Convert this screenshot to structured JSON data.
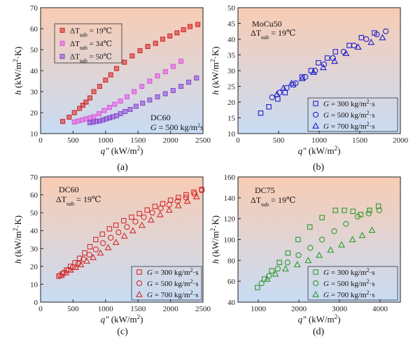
{
  "chart_data": [
    {
      "type": "scatter",
      "panel_label": "(a)",
      "xlabel": "q″ (kW/m²)",
      "ylabel": "h (kW/m²·K)",
      "xlim": [
        0,
        2500
      ],
      "ylim": [
        10,
        70
      ],
      "xticks": [
        0,
        500,
        1000,
        1500,
        2000,
        2500
      ],
      "yticks": [
        10,
        20,
        30,
        40,
        50,
        60,
        70
      ],
      "x_tick_labels": [
        "0",
        "500",
        "1000",
        "1500",
        "2000",
        "2500"
      ],
      "y_tick_labels": [
        "10",
        "20",
        "30",
        "40",
        "50",
        "60",
        "70"
      ],
      "annotations": [
        "DC60",
        "G = 500 kg/m²s"
      ],
      "legend_position": "top-left",
      "series": [
        {
          "name": "ΔTsub = 19℃",
          "label_main": "ΔT",
          "label_sub": "sub",
          "label_tail": " = 19℃",
          "marker": "square",
          "color": "#d42a2a",
          "x": [
            340,
            440,
            520,
            600,
            650,
            700,
            760,
            820,
            910,
            1000,
            1080,
            1170,
            1290,
            1410,
            1530,
            1650,
            1770,
            1880,
            1990,
            2100,
            2200,
            2300,
            2420
          ],
          "y": [
            15.8,
            17.8,
            20,
            22,
            23.5,
            25,
            27,
            30,
            32.5,
            35.5,
            38,
            41,
            44,
            47,
            49.5,
            51.5,
            53,
            55,
            56.5,
            58,
            59.5,
            61,
            62
          ]
        },
        {
          "name": "ΔTsub = 34℃",
          "label_main": "ΔT",
          "label_sub": "sub",
          "label_tail": " = 34℃",
          "marker": "square",
          "color": "#e055e0",
          "x": [
            520,
            580,
            640,
            700,
            760,
            820,
            900,
            980,
            1060,
            1140,
            1230,
            1330,
            1440,
            1560,
            1680,
            1800,
            1920,
            2040,
            2160
          ],
          "y": [
            15.5,
            16,
            16.5,
            17,
            17.5,
            18,
            19.5,
            21,
            22.5,
            24,
            25.5,
            27.5,
            30,
            32.5,
            35,
            37.5,
            39.5,
            42,
            44.5
          ]
        },
        {
          "name": "ΔTsub = 50℃",
          "label_main": "ΔT",
          "label_sub": "sub",
          "label_tail": " = 50℃",
          "marker": "square",
          "color": "#8a4ccf",
          "x": [
            760,
            810,
            860,
            910,
            960,
            1010,
            1060,
            1110,
            1170,
            1230,
            1300,
            1380,
            1470,
            1570,
            1680,
            1800,
            1920,
            2040,
            2160,
            2280,
            2400
          ],
          "y": [
            15.2,
            15.5,
            15.8,
            16,
            16.5,
            17,
            17.5,
            18,
            18.5,
            19.5,
            20.5,
            21.5,
            23,
            24.5,
            26,
            27.5,
            29,
            30.5,
            32.5,
            34.5,
            36.5
          ]
        }
      ]
    },
    {
      "type": "scatter",
      "panel_label": "(b)",
      "xlabel": "q″ (kW/m²)",
      "ylabel": "h (kW/m²·K)",
      "xlim": [
        0,
        2000
      ],
      "ylim": [
        10,
        50
      ],
      "xticks": [
        0,
        500,
        1000,
        1500,
        2000
      ],
      "yticks": [
        10,
        15,
        20,
        25,
        30,
        35,
        40,
        45,
        50
      ],
      "x_tick_labels": [
        "0",
        "500",
        "1000",
        "1500",
        "2000"
      ],
      "y_tick_labels": [
        "10",
        "15",
        "20",
        "25",
        "30",
        "35",
        "40",
        "45",
        "50"
      ],
      "annotations": [
        "MoCu50",
        "ΔTsub = 19℃"
      ],
      "legend_position": "bottom-right",
      "series": [
        {
          "name": "G = 300 kg/m²·s",
          "marker": "square",
          "color": "#2020cc",
          "x": [
            280,
            380,
            490,
            580,
            680,
            790,
            900,
            990,
            1100,
            1200,
            1370,
            1520,
            1680
          ],
          "y": [
            16.5,
            18.5,
            21,
            23,
            25.5,
            28,
            30,
            32.5,
            34,
            36,
            38,
            40.5,
            42
          ]
        },
        {
          "name": "G = 500 kg/m²·s",
          "marker": "circle",
          "color": "#2020cc",
          "x": [
            420,
            510,
            600,
            710,
            830,
            950,
            1060,
            1170,
            1300,
            1430,
            1580,
            1710,
            1820
          ],
          "y": [
            21.5,
            23,
            24.5,
            26,
            28,
            30,
            32,
            34,
            36,
            38,
            40,
            41.5,
            42.5
          ]
        },
        {
          "name": "G = 700 kg/m²·s",
          "marker": "triangle",
          "color": "#2020cc",
          "x": [
            480,
            560,
            660,
            790,
            930,
            1050,
            1190,
            1330,
            1480,
            1640,
            1780
          ],
          "y": [
            22.5,
            24.5,
            26,
            27.5,
            29.5,
            31,
            33,
            35.5,
            37.5,
            39,
            40.5
          ]
        }
      ]
    },
    {
      "type": "scatter",
      "panel_label": "(c)",
      "xlabel": "q″ (kW/m²)",
      "ylabel": "h (kW/m²·K)",
      "xlim": [
        0,
        2500
      ],
      "ylim": [
        0,
        70
      ],
      "xticks": [
        0,
        500,
        1000,
        1500,
        2000,
        2500
      ],
      "yticks": [
        0,
        10,
        20,
        30,
        40,
        50,
        60,
        70
      ],
      "x_tick_labels": [
        "0",
        "500",
        "1000",
        "1500",
        "2000",
        "2500"
      ],
      "y_tick_labels": [
        "0",
        "10",
        "20",
        "30",
        "40",
        "50",
        "60",
        "70"
      ],
      "annotations": [
        "DC60",
        "ΔTsub = 19℃"
      ],
      "legend_position": "bottom-right",
      "series": [
        {
          "name": "G = 300 kg/m²·s",
          "marker": "square",
          "color": "#d42a2a",
          "x": [
            280,
            340,
            400,
            460,
            530,
            600,
            680,
            760,
            850,
            950,
            1060,
            1160,
            1280,
            1400,
            1520,
            1640,
            1760,
            1880,
            2000,
            2120,
            2240,
            2360,
            2480
          ],
          "y": [
            14.5,
            16,
            18,
            20,
            22,
            24.5,
            27.5,
            31,
            35,
            38,
            41,
            43,
            45.5,
            47.5,
            49.5,
            51.5,
            53.5,
            55,
            57,
            58.5,
            60,
            61.5,
            63
          ]
        },
        {
          "name": "G = 500 kg/m²·s",
          "marker": "circle",
          "color": "#d42a2a",
          "x": [
            300,
            360,
            430,
            500,
            580,
            660,
            750,
            850,
            960,
            1080,
            1200,
            1330,
            1460,
            1590,
            1720,
            1850,
            1980,
            2110,
            2240,
            2370,
            2480
          ],
          "y": [
            15,
            16.5,
            18,
            19.5,
            21.5,
            24,
            26.5,
            29.5,
            33,
            36,
            39,
            42,
            45,
            47.5,
            50,
            52.5,
            54.5,
            56.5,
            58.5,
            60.5,
            62.5
          ]
        },
        {
          "name": "G = 700 kg/m²·s",
          "marker": "triangle",
          "color": "#d42a2a",
          "x": [
            320,
            390,
            460,
            540,
            620,
            710,
            810,
            920,
            1040,
            1160,
            1290,
            1420,
            1560,
            1700,
            1840,
            1980,
            2120,
            2260,
            2400
          ],
          "y": [
            15,
            16.5,
            18,
            19.5,
            21,
            23,
            25,
            27.5,
            30.5,
            33.5,
            37,
            40,
            43,
            46,
            49,
            51.5,
            54,
            56.5,
            59
          ]
        }
      ]
    },
    {
      "type": "scatter",
      "panel_label": "(d)",
      "xlabel": "q″ (kW/m²)",
      "ylabel": "h (kW/m²·K)",
      "xlim": [
        500,
        4500
      ],
      "ylim": [
        40,
        160
      ],
      "xticks": [
        1000,
        2000,
        3000,
        4000
      ],
      "yticks": [
        40,
        60,
        80,
        100,
        120,
        140,
        160
      ],
      "x_tick_labels": [
        "1000",
        "2000",
        "3000",
        "4000"
      ],
      "y_tick_labels": [
        "40",
        "60",
        "80",
        "100",
        "120",
        "140",
        "160"
      ],
      "annotations": [
        "DC75",
        "ΔTsub = 19℃"
      ],
      "legend_position": "bottom-right",
      "series": [
        {
          "name": "G = 300 kg/m²·s",
          "marker": "square",
          "color": "#2e9a2e",
          "x": [
            980,
            1150,
            1330,
            1520,
            1730,
            1980,
            2270,
            2570,
            2900,
            3120,
            3330,
            3520,
            3740,
            3960
          ],
          "y": [
            54,
            62,
            70,
            78,
            87,
            100,
            112,
            121,
            128,
            128,
            127,
            124,
            128,
            132
          ]
        },
        {
          "name": "G = 500 kg/m²·s",
          "marker": "circle",
          "color": "#2e9a2e",
          "x": [
            1080,
            1260,
            1480,
            1720,
            1990,
            2280,
            2570,
            2870,
            3160,
            3450,
            3720,
            3980
          ],
          "y": [
            58,
            65,
            72,
            78,
            85,
            92,
            100,
            108,
            115,
            122,
            125,
            128
          ]
        },
        {
          "name": "G = 700 kg/m²·s",
          "marker": "triangle",
          "color": "#2e9a2e",
          "x": [
            1220,
            1420,
            1670,
            1960,
            2230,
            2500,
            2780,
            3050,
            3320,
            3560,
            3800
          ],
          "y": [
            62,
            67,
            72,
            76,
            80,
            85,
            90,
            95,
            100,
            104,
            109
          ]
        }
      ]
    }
  ]
}
